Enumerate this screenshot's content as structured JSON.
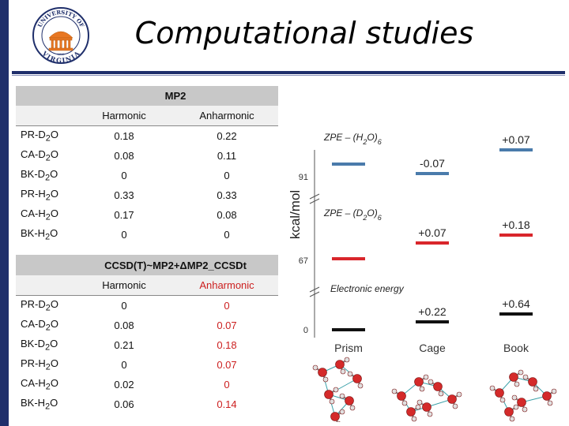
{
  "title": "Computational studies",
  "logo": {
    "text_top": "UNIVERSITY OF",
    "text_bottom": "VIRGINIA",
    "year": "1819"
  },
  "table_mp2": {
    "method": "MP2",
    "headers": [
      "Harmonic",
      "Anharmonic"
    ],
    "rows": [
      {
        "label": "PR-D",
        "sub": "2",
        "tail": "O",
        "harmonic": "0.18",
        "anharmonic": "0.22"
      },
      {
        "label": "CA-D",
        "sub": "2",
        "tail": "O",
        "harmonic": "0.08",
        "anharmonic": "0.11"
      },
      {
        "label": "BK-D",
        "sub": "2",
        "tail": "O",
        "harmonic": "0",
        "anharmonic": "0"
      },
      {
        "label": "PR-H",
        "sub": "2",
        "tail": "O",
        "harmonic": "0.33",
        "anharmonic": "0.33"
      },
      {
        "label": "CA-H",
        "sub": "2",
        "tail": "O",
        "harmonic": "0.17",
        "anharmonic": "0.08"
      },
      {
        "label": "BK-H",
        "sub": "2",
        "tail": "O",
        "harmonic": "0",
        "anharmonic": "0"
      }
    ]
  },
  "table_ccsd": {
    "method": "CCSD(T)~MP2+ΔMP2_CCSDt",
    "headers": [
      "Harmonic",
      "Anharmonic"
    ],
    "rows": [
      {
        "label": "PR-D",
        "sub": "2",
        "tail": "O",
        "harmonic": "0",
        "anharmonic": "0"
      },
      {
        "label": "CA-D",
        "sub": "2",
        "tail": "O",
        "harmonic": "0.08",
        "anharmonic": "0.07"
      },
      {
        "label": "BK-D",
        "sub": "2",
        "tail": "O",
        "harmonic": "0.21",
        "anharmonic": "0.18"
      },
      {
        "label": "PR-H",
        "sub": "2",
        "tail": "O",
        "harmonic": "0",
        "anharmonic": "0.07"
      },
      {
        "label": "CA-H",
        "sub": "2",
        "tail": "O",
        "harmonic": "0.02",
        "anharmonic": "0"
      },
      {
        "label": "BK-H",
        "sub": "2",
        "tail": "O",
        "harmonic": "0.06",
        "anharmonic": "0.14"
      }
    ]
  },
  "chart_data": {
    "type": "diagram",
    "ylabel": "kcal/mol",
    "categories": [
      "Prism",
      "Cage",
      "Book"
    ],
    "y_ticks": [
      "91",
      "67",
      "0"
    ],
    "groups": [
      {
        "name": "ZPE – (H",
        "sub": "2",
        "tail": "O)",
        "sub2": "6",
        "color": "#4a7bab",
        "deltas": [
          "",
          "-0.07",
          "+0.07"
        ]
      },
      {
        "name": "ZPE – (D",
        "sub": "2",
        "tail": "O)",
        "sub2": "6",
        "color": "#d9262b",
        "deltas": [
          "",
          "+0.07",
          "+0.18"
        ]
      },
      {
        "name": "Electronic energy",
        "color": "#111111",
        "deltas": [
          "",
          "+0.22",
          "+0.64"
        ]
      }
    ]
  }
}
